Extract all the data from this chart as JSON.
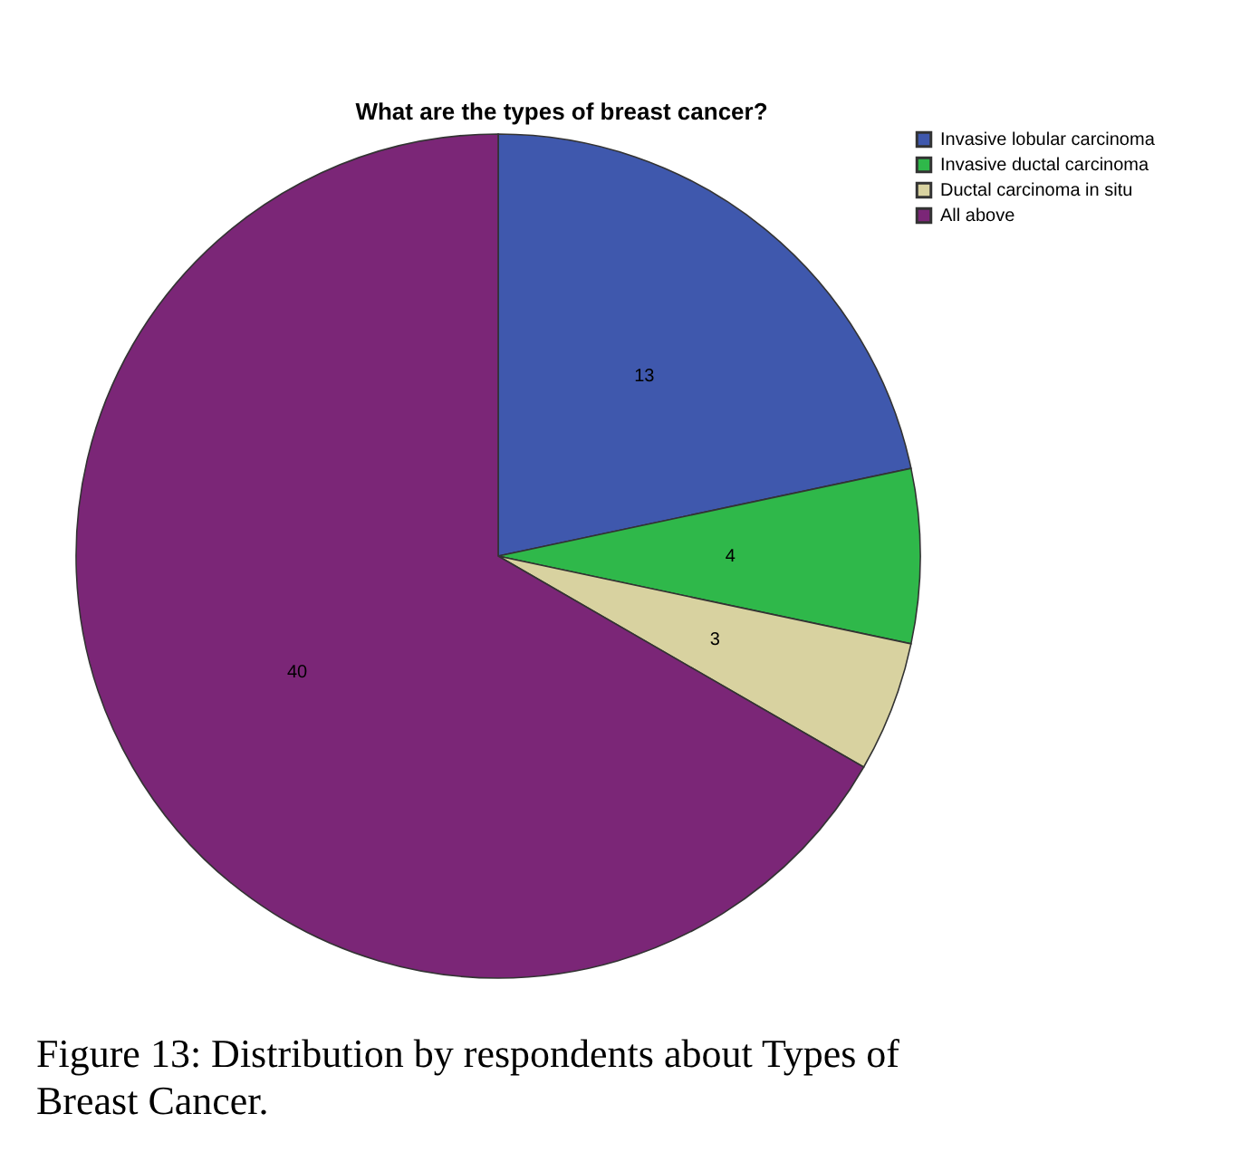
{
  "chart_data": {
    "type": "pie",
    "title": "What are the types of breast cancer?",
    "categories": [
      "Invasive lobular carcinoma",
      "Invasive ductal carcinoma",
      "Ductal carcinoma in situ",
      "All above"
    ],
    "values": [
      13,
      4,
      3,
      40
    ],
    "colors": [
      "#3f58ad",
      "#2fb84a",
      "#d8d2a0",
      "#7b2677"
    ],
    "data_labels": true,
    "legend": "top right",
    "annotations": [
      "Figure 13: Distribution by respondents about Types of Breast Cancer."
    ]
  }
}
